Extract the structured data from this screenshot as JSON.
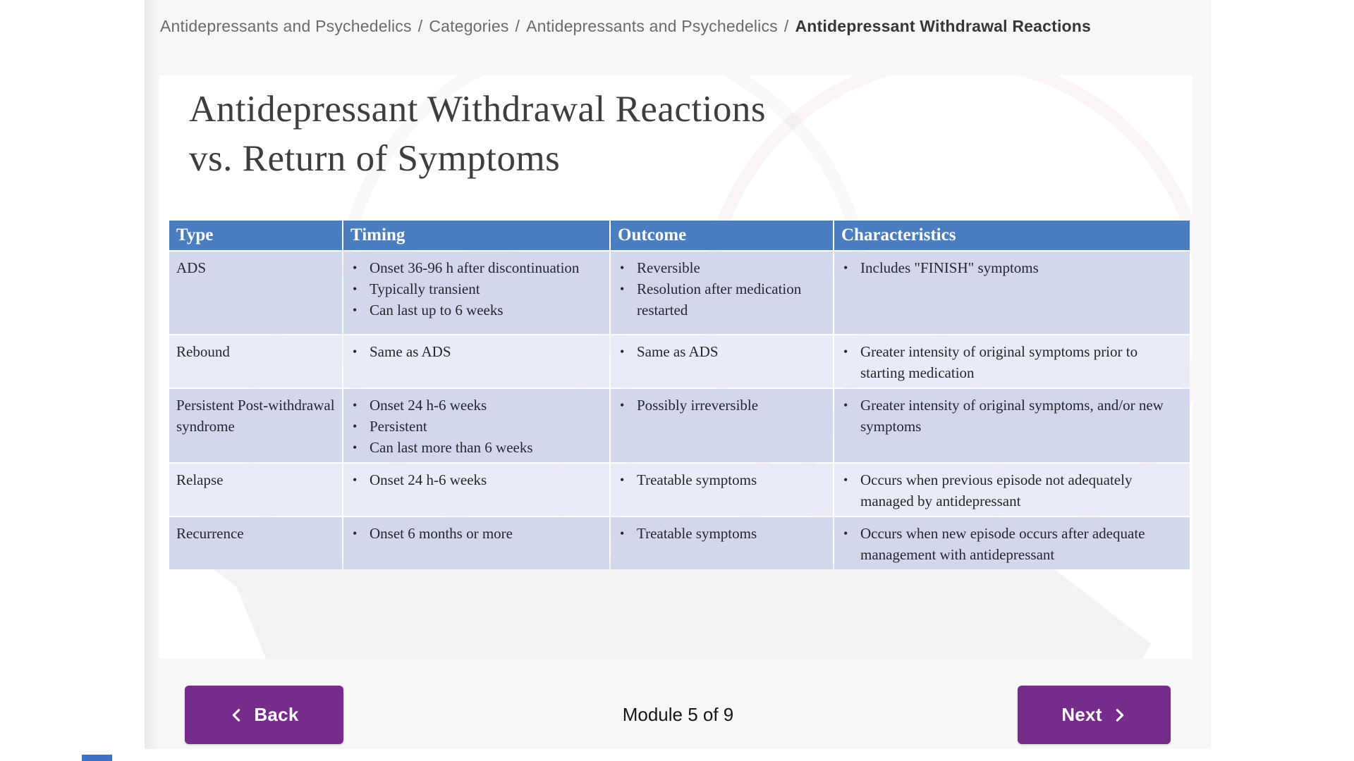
{
  "breadcrumb": {
    "separator": "/",
    "items": [
      "Antidepressants and Psychedelics",
      "Categories",
      "Antidepressants and Psychedelics"
    ],
    "current": "Antidepressant Withdrawal Reactions"
  },
  "slide": {
    "title_line1": "Antidepressant Withdrawal Reactions",
    "title_line2": "vs. Return of Symptoms",
    "table": {
      "headers": [
        "Type",
        "Timing",
        "Outcome",
        "Characteristics"
      ],
      "rows": [
        {
          "type": "ADS",
          "timing": [
            "Onset 36-96 h after discontinuation",
            "Typically transient",
            "Can last up to 6 weeks"
          ],
          "outcome": [
            "Reversible",
            "Resolution after medication restarted"
          ],
          "characteristics": [
            "Includes \"FINISH\" symptoms"
          ]
        },
        {
          "type": "Rebound",
          "timing": [
            "Same as ADS"
          ],
          "outcome": [
            "Same as ADS"
          ],
          "characteristics": [
            "Greater intensity of original symptoms prior to starting medication"
          ]
        },
        {
          "type": "Persistent Post-withdrawal syndrome",
          "timing": [
            "Onset 24 h-6 weeks",
            "Persistent",
            "Can last more than 6 weeks"
          ],
          "outcome": [
            "Possibly irreversible"
          ],
          "characteristics": [
            "Greater intensity of original symptoms, and/or new symptoms"
          ]
        },
        {
          "type": "Relapse",
          "timing": [
            "Onset 24 h-6 weeks"
          ],
          "outcome": [
            "Treatable symptoms"
          ],
          "characteristics": [
            "Occurs when previous episode not adequately managed by antidepressant"
          ]
        },
        {
          "type": "Recurrence",
          "timing": [
            "Onset 6 months or more"
          ],
          "outcome": [
            "Treatable symptoms"
          ],
          "characteristics": [
            "Occurs when new episode occurs after adequate management with antidepressant"
          ]
        }
      ]
    }
  },
  "footer": {
    "back_label": "Back",
    "next_label": "Next",
    "progress_label": "Module 5 of 9"
  },
  "colors": {
    "content_bg": "#f7f7f8",
    "header_blue": "#4b7dc1",
    "row_dark": "#d2d7ec",
    "row_light": "#e9ebf6",
    "button_purple": "#752c8b",
    "crumb_gray": "#6b6b6b",
    "crumb_dark": "#373737",
    "title_color": "#3e3e40",
    "table_text": "#26262e",
    "progress_text": "#16161d",
    "strip_blue": "#3f70c4"
  }
}
